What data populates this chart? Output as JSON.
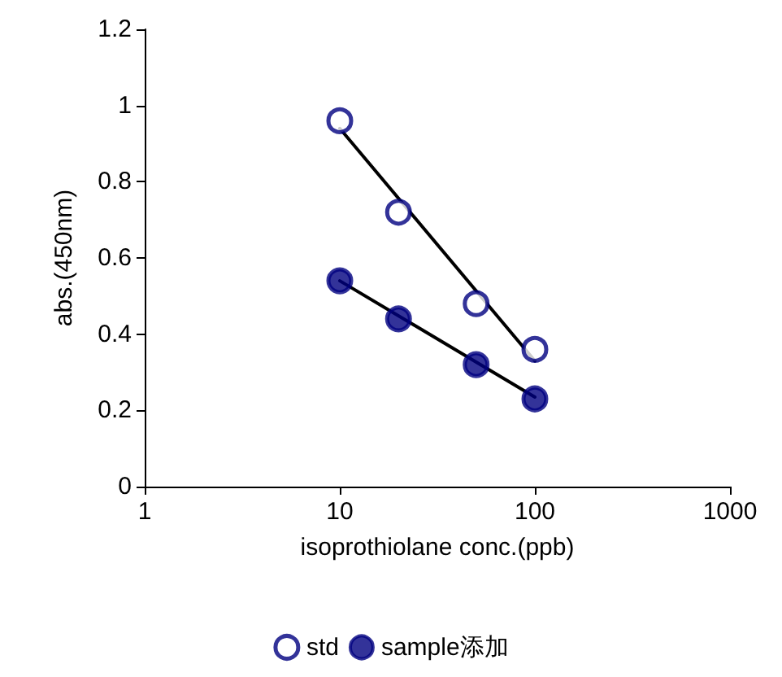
{
  "chart_data": {
    "type": "scatter",
    "xlabel": "isoprothiolane conc.(ppb)",
    "ylabel": "abs.(450nm)",
    "log": "x",
    "xlim": [
      1,
      1000
    ],
    "xticks": [
      1,
      10,
      100,
      1000
    ],
    "ylim": [
      0,
      1.2
    ],
    "yticks": [
      0,
      0.2,
      0.4,
      0.6,
      0.8,
      1,
      1.2
    ],
    "grid": false,
    "legend": "bottom",
    "marker": "circle",
    "series": [
      {
        "name": "std",
        "color": "#000080",
        "x": [
          10,
          20,
          50,
          100
        ],
        "values": [
          0.96,
          0.72,
          0.48,
          0.36
        ]
      },
      {
        "name": "sample添加",
        "color": "#000080",
        "x": [
          10,
          20,
          50,
          100
        ],
        "values": [
          0.54,
          0.44,
          0.32,
          0.23
        ]
      },
      {
        "type": "line",
        "color": "#000000",
        "marker": "none",
        "x": [
          10,
          100
        ],
        "values": [
          0.94,
          0.33
        ]
      },
      {
        "type": "line",
        "color": "#000000",
        "marker": "none",
        "x": [
          10,
          100
        ],
        "values": [
          0.54,
          0.235
        ]
      }
    ]
  }
}
